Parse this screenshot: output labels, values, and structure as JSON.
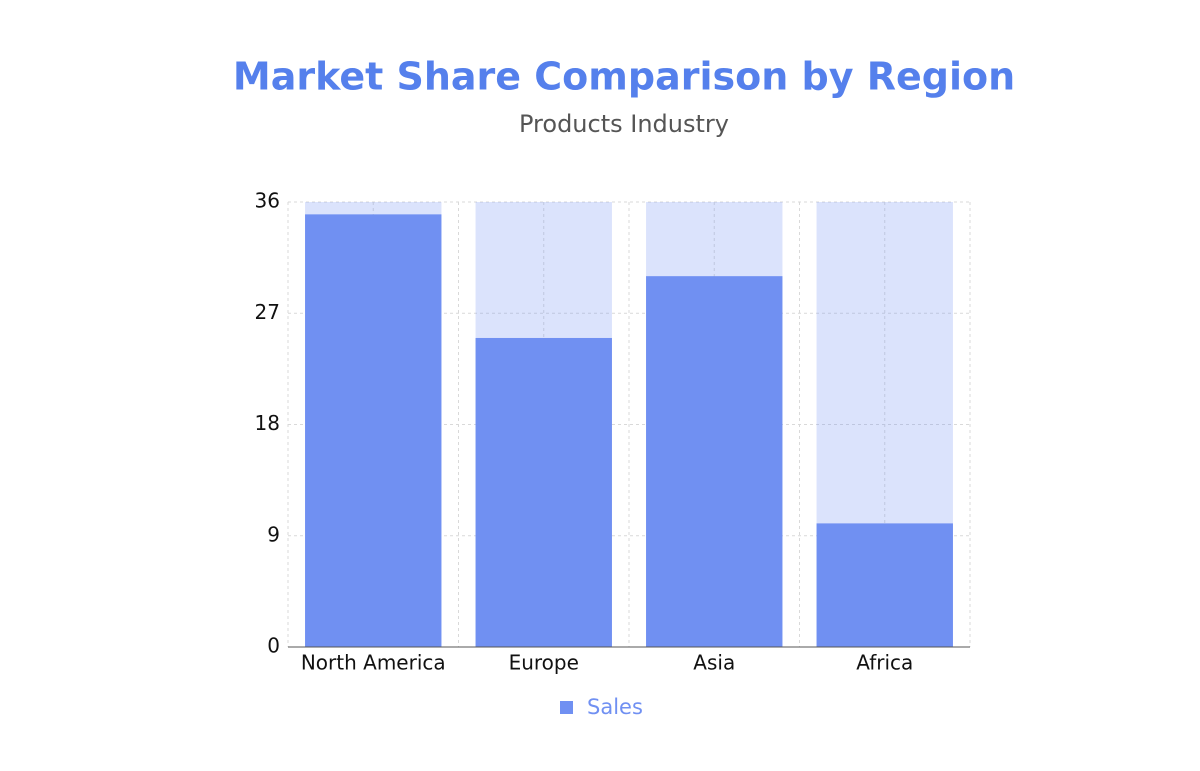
{
  "chart_data": {
    "type": "bar",
    "title": "Market Share Comparison by Region",
    "subtitle": "Products Industry",
    "categories": [
      "North America",
      "Europe",
      "Asia",
      "Africa"
    ],
    "series": [
      {
        "name": "Sales",
        "color": "#7090f2",
        "values": [
          35,
          25,
          30,
          10
        ]
      }
    ],
    "ylim": [
      0,
      36
    ],
    "yticks": [
      0,
      9,
      18,
      27,
      36
    ],
    "grid": true
  }
}
